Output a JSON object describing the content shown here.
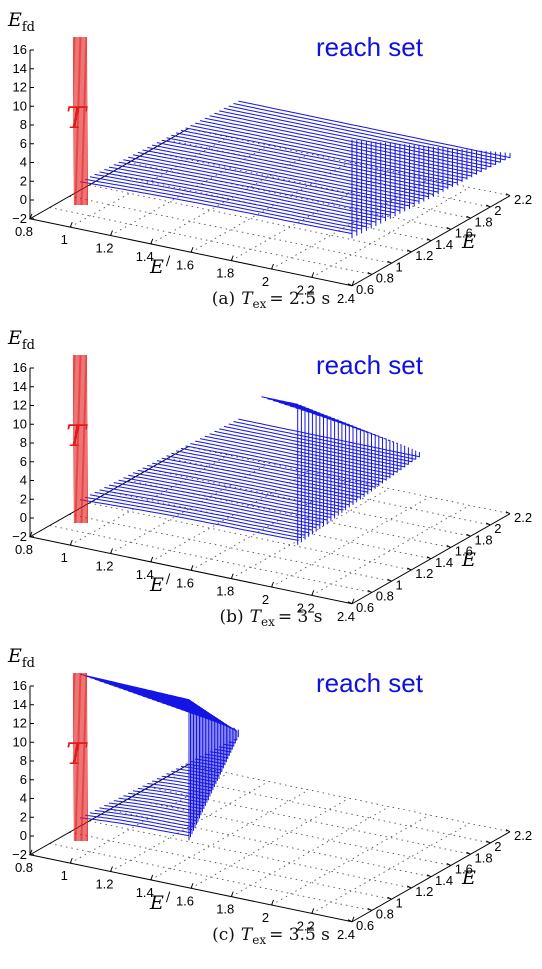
{
  "chart_data": [
    {
      "type": "surface",
      "caption": {
        "prefix": "(a)",
        "var": "T",
        "sub": "ex",
        "eq": "= 2.5 s"
      },
      "target_label": "T",
      "set_label": "reach set",
      "zlabel": {
        "main": "E",
        "sub": "fd"
      },
      "xlabel": "E",
      "xlabel_mark": "/",
      "ylabel": "E",
      "x_ticks": [
        "0.8",
        "1",
        "1.2",
        "1.4",
        "1.6",
        "1.8",
        "2",
        "2.2",
        "2.4"
      ],
      "y_ticks": [
        "0.6",
        "0.8",
        "1",
        "1.2",
        "1.4",
        "1.6",
        "1.8",
        "2",
        "2.2"
      ],
      "z_ticks": [
        "−2",
        "0",
        "2",
        "4",
        "6",
        "8",
        "10",
        "12",
        "14",
        "16"
      ],
      "xlim": [
        0.8,
        2.4
      ],
      "ylim": [
        0.6,
        2.2
      ],
      "zlim": [
        -2,
        16
      ],
      "target_x": 1.05,
      "reach_set": {
        "min_x_at_upper": 2.4,
        "upper_max_z": 12.5,
        "curves": 34,
        "lower_z": 2.0
      }
    },
    {
      "type": "surface",
      "caption": {
        "prefix": "(b)",
        "var": "T",
        "sub": "ex",
        "eq": "= 3 s"
      },
      "target_label": "T",
      "set_label": "reach set",
      "zlabel": {
        "main": "E",
        "sub": "fd"
      },
      "xlabel": "E",
      "xlabel_mark": "/",
      "ylabel": "E",
      "x_ticks": [
        "0.8",
        "1",
        "1.2",
        "1.4",
        "1.6",
        "1.8",
        "2",
        "2.2",
        "2.4"
      ],
      "y_ticks": [
        "0.6",
        "0.8",
        "1",
        "1.2",
        "1.4",
        "1.6",
        "1.8",
        "2",
        "2.2"
      ],
      "z_ticks": [
        "−2",
        "0",
        "2",
        "4",
        "6",
        "8",
        "10",
        "12",
        "14",
        "16"
      ],
      "xlim": [
        0.8,
        2.4
      ],
      "ylim": [
        0.6,
        2.2
      ],
      "zlim": [
        -2,
        16
      ],
      "target_x": 1.05,
      "reach_set": {
        "min_x_at_upper": 1.95,
        "upper_max_z": 17,
        "curves": 34,
        "lower_z": 2.0
      }
    },
    {
      "type": "surface",
      "caption": {
        "prefix": "(c)",
        "var": "T",
        "sub": "ex",
        "eq": "= 3.5 s"
      },
      "target_label": "T",
      "set_label": "reach set",
      "zlabel": {
        "main": "E",
        "sub": "fd"
      },
      "xlabel": "E",
      "xlabel_mark": "/",
      "ylabel": "E",
      "x_ticks": [
        "0.8",
        "1",
        "1.2",
        "1.4",
        "1.6",
        "1.8",
        "2",
        "2.2",
        "2.4"
      ],
      "y_ticks": [
        "0.6",
        "0.8",
        "1",
        "1.2",
        "1.4",
        "1.6",
        "1.8",
        "2",
        "2.2"
      ],
      "z_ticks": [
        "−2",
        "0",
        "2",
        "4",
        "6",
        "8",
        "10",
        "12",
        "14",
        "16"
      ],
      "xlim": [
        0.8,
        2.4
      ],
      "ylim": [
        0.6,
        2.2
      ],
      "zlim": [
        -2,
        16
      ],
      "target_x": 1.05,
      "reach_set": {
        "min_x_at_upper": 1.05,
        "upper_max_z": 17,
        "curves": 34,
        "lower_z": 2.0
      }
    }
  ],
  "colors": {
    "reach_set": "#1515e6",
    "target": "#e11a1a",
    "axes": "#000000",
    "grid": "#555555"
  }
}
